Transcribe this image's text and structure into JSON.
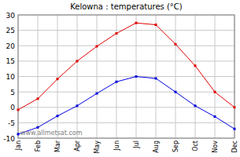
{
  "chart_data": {
    "type": "line",
    "title": "Kelowna : temperatures (°C)",
    "annotations": [
      "www.allmetsat.com"
    ],
    "categories": [
      "Jan",
      "Feb",
      "Mar",
      "Apr",
      "May",
      "Jun",
      "Jul",
      "Aug",
      "Sep",
      "Oct",
      "Nov",
      "Dec"
    ],
    "series": [
      {
        "color": "#e00000",
        "marker": "square",
        "values": [
          -0.8,
          2.8,
          9.2,
          15,
          19.8,
          24,
          27.4,
          26.8,
          20.5,
          13.5,
          5,
          0
        ]
      },
      {
        "color": "#0000e0",
        "marker": "square",
        "values": [
          -8.7,
          -6.5,
          -2.8,
          0.5,
          4.5,
          8.3,
          10,
          9.4,
          5,
          0.5,
          -3,
          -7
        ]
      }
    ],
    "ylim": [
      -10,
      30
    ],
    "yticks": [
      -10,
      -5,
      0,
      5,
      10,
      15,
      20,
      25,
      30
    ],
    "grid": true
  }
}
